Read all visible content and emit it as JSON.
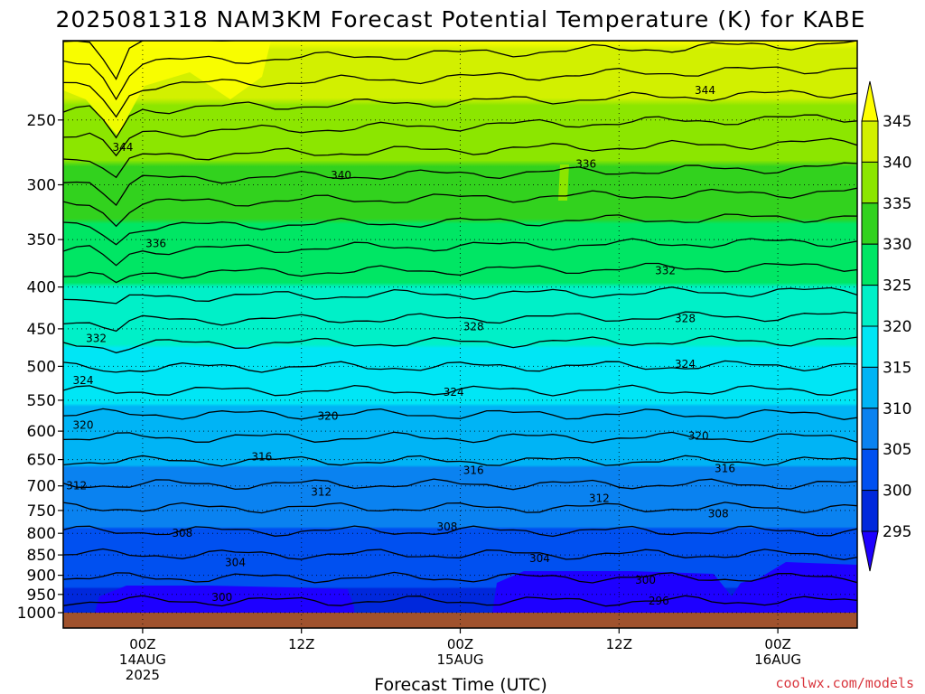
{
  "chart_data": {
    "type": "heatmap",
    "title": "2025081318 NAM3KM Forecast Potential Temperature (K) for KABE",
    "xlabel": "Forecast Time (UTC)",
    "ylabel": "",
    "credit": "coolwx.com/models",
    "y_axis": {
      "scale": "log-pressure",
      "range": [
        1000,
        200
      ],
      "ticks": [
        250,
        300,
        350,
        400,
        450,
        500,
        550,
        600,
        650,
        700,
        750,
        800,
        850,
        900,
        950,
        1000
      ],
      "tick_labels": [
        "250",
        "300",
        "350",
        "400",
        "450",
        "500",
        "550",
        "600",
        "650",
        "700",
        "750",
        "800",
        "850",
        "900",
        "950",
        "1000"
      ]
    },
    "x_axis": {
      "start": "2025-08-13 18Z",
      "end": "2025-08-16 06Z",
      "ticks": [
        {
          "time": "2025-08-14 00Z",
          "lines": [
            "00Z",
            "14AUG",
            "2025"
          ]
        },
        {
          "time": "2025-08-14 12Z",
          "lines": [
            "12Z"
          ]
        },
        {
          "time": "2025-08-15 00Z",
          "lines": [
            "00Z",
            "15AUG"
          ]
        },
        {
          "time": "2025-08-15 12Z",
          "lines": [
            "12Z"
          ]
        },
        {
          "time": "2025-08-16 00Z",
          "lines": [
            "00Z",
            "16AUG"
          ]
        }
      ]
    },
    "colorbar": {
      "levels": [
        295,
        300,
        305,
        310,
        315,
        320,
        325,
        330,
        335,
        340,
        345
      ],
      "labels": [
        "295",
        "300",
        "305",
        "310",
        "315",
        "320",
        "325",
        "330",
        "335",
        "340",
        "345"
      ],
      "colors": [
        "#1e00ff",
        "#0028dc",
        "#0050f0",
        "#0a82f0",
        "#00b4f5",
        "#00e6f5",
        "#00f0c8",
        "#00e664",
        "#32d21e",
        "#8ce600",
        "#d2f000",
        "#ffff00"
      ]
    },
    "contour_levels": [
      296,
      298,
      300,
      302,
      304,
      306,
      308,
      310,
      312,
      314,
      316,
      318,
      320,
      322,
      324,
      326,
      328,
      330,
      332,
      334,
      336,
      338,
      340,
      342,
      344,
      346
    ],
    "contour_labels": [
      {
        "value": "344",
        "time": "2025-08-13 22.5Z",
        "pressure": 270
      },
      {
        "value": "344",
        "time": "2025-08-15 18.5Z",
        "pressure": 230
      },
      {
        "value": "340",
        "time": "2025-08-14 15Z",
        "pressure": 292
      },
      {
        "value": "336",
        "time": "2025-08-15 09.5Z",
        "pressure": 283
      },
      {
        "value": "336",
        "time": "2025-08-14 01Z",
        "pressure": 354
      },
      {
        "value": "332",
        "time": "2025-08-15 15.5Z",
        "pressure": 382
      },
      {
        "value": "332",
        "time": "2025-08-13 20.5Z",
        "pressure": 462
      },
      {
        "value": "328",
        "time": "2025-08-15 01Z",
        "pressure": 447
      },
      {
        "value": "328",
        "time": "2025-08-15 17Z",
        "pressure": 437
      },
      {
        "value": "324",
        "time": "2025-08-15 17Z",
        "pressure": 497
      },
      {
        "value": "324",
        "time": "2025-08-14 23.5Z",
        "pressure": 538
      },
      {
        "value": "324",
        "time": "2025-08-13 19.5Z",
        "pressure": 520
      },
      {
        "value": "320",
        "time": "2025-08-14 14Z",
        "pressure": 575
      },
      {
        "value": "320",
        "time": "2025-08-13 19.5Z",
        "pressure": 590
      },
      {
        "value": "320",
        "time": "2025-08-15 18Z",
        "pressure": 608
      },
      {
        "value": "316",
        "time": "2025-08-14 09Z",
        "pressure": 645
      },
      {
        "value": "316",
        "time": "2025-08-15 01Z",
        "pressure": 670
      },
      {
        "value": "316",
        "time": "2025-08-15 20Z",
        "pressure": 667
      },
      {
        "value": "312",
        "time": "2025-08-13 19Z",
        "pressure": 700
      },
      {
        "value": "312",
        "time": "2025-08-14 13.5Z",
        "pressure": 712
      },
      {
        "value": "312",
        "time": "2025-08-15 10.5Z",
        "pressure": 725
      },
      {
        "value": "308",
        "time": "2025-08-14 03Z",
        "pressure": 800
      },
      {
        "value": "308",
        "time": "2025-08-14 23Z",
        "pressure": 785
      },
      {
        "value": "308",
        "time": "2025-08-15 19.5Z",
        "pressure": 757
      },
      {
        "value": "304",
        "time": "2025-08-14 07Z",
        "pressure": 868
      },
      {
        "value": "304",
        "time": "2025-08-15 06Z",
        "pressure": 858
      },
      {
        "value": "300",
        "time": "2025-08-14 06Z",
        "pressure": 958
      },
      {
        "value": "300",
        "time": "2025-08-15 14Z",
        "pressure": 912
      },
      {
        "value": "296",
        "time": "2025-08-15 15Z",
        "pressure": 968
      }
    ]
  }
}
